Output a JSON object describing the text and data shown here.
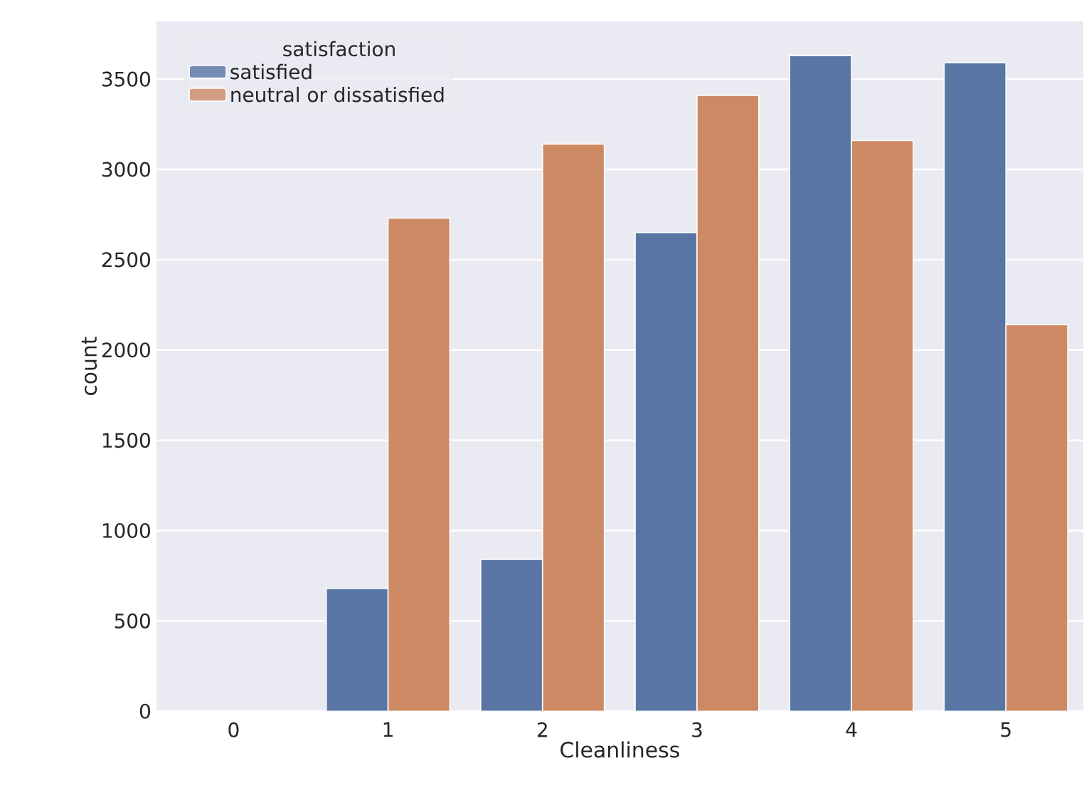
{
  "chart_data": {
    "type": "bar",
    "xlabel": "Cleanliness",
    "ylabel": "count",
    "legend_title": "satisfaction",
    "categories": [
      "0",
      "1",
      "2",
      "3",
      "4",
      "5"
    ],
    "series": [
      {
        "name": "satisfied",
        "color": "#5875a4",
        "values": [
          0,
          680,
          840,
          2650,
          3630,
          3590
        ]
      },
      {
        "name": "neutral or dissatisfied",
        "color": "#cc8963",
        "values": [
          0,
          2730,
          3140,
          3410,
          3160,
          2140
        ]
      }
    ],
    "ylim": [
      0,
      3820
    ],
    "yticks": [
      0,
      500,
      1000,
      1500,
      2000,
      2500,
      3000,
      3500
    ],
    "grid": "y",
    "legend": "top left"
  }
}
